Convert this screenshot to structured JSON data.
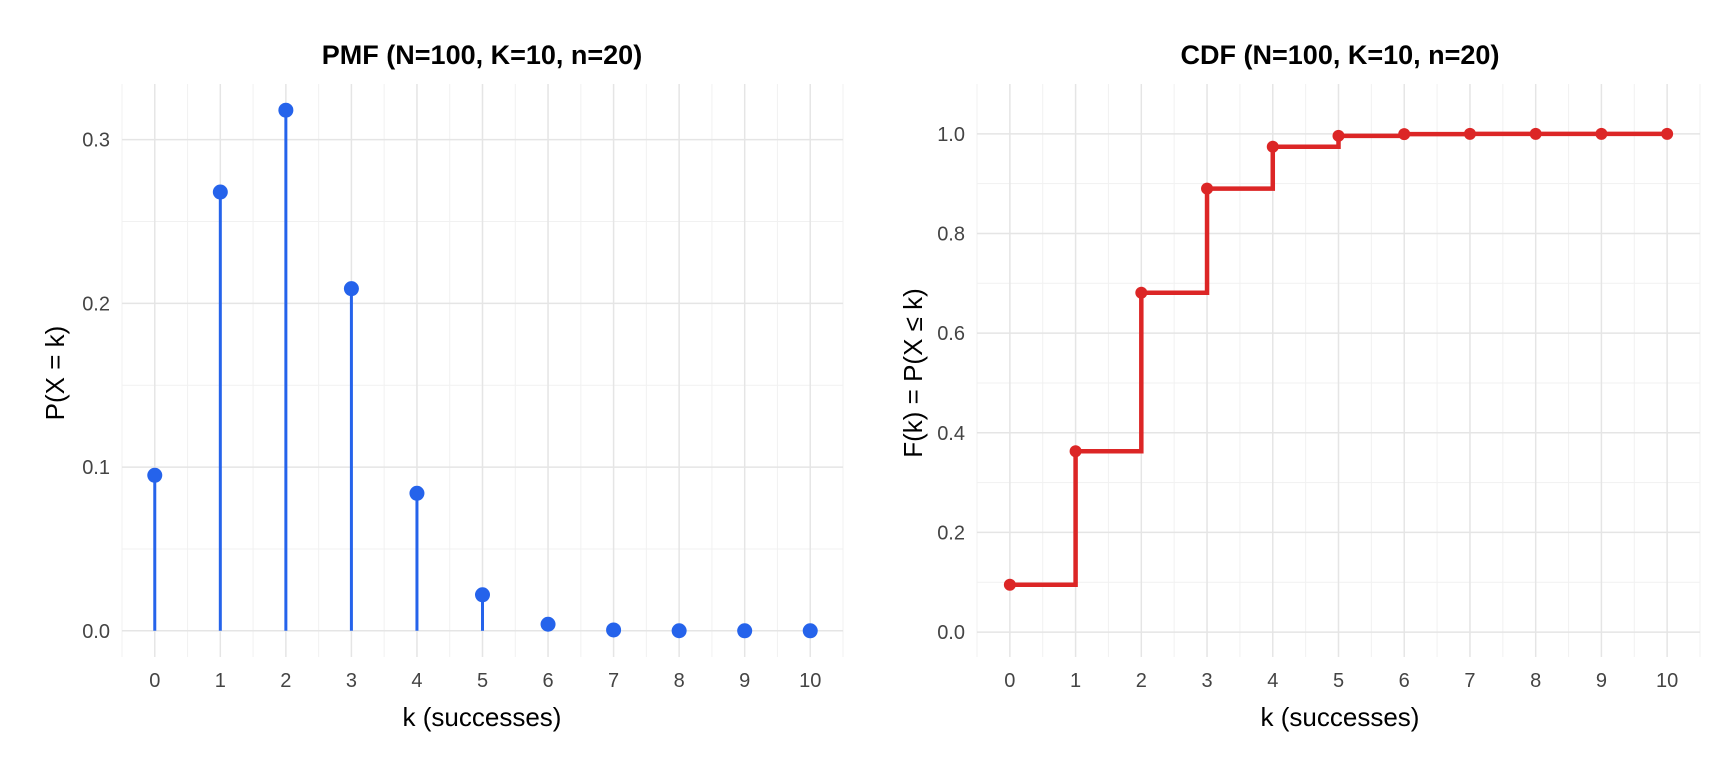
{
  "chart_data": [
    {
      "type": "lollipop",
      "title": "PMF  (N=100, K=10, n=20)",
      "xlabel": "k (successes)",
      "ylabel": "P(X = k)",
      "x": [
        0,
        1,
        2,
        3,
        4,
        5,
        6,
        7,
        8,
        9,
        10
      ],
      "values": [
        0.095,
        0.268,
        0.318,
        0.209,
        0.084,
        0.022,
        0.004,
        0.0005,
        3e-05,
        1e-06,
        0.0
      ],
      "xlim": [
        -0.5,
        10.5
      ],
      "ylim": [
        -0.016,
        0.334
      ],
      "xticks": [
        0,
        1,
        2,
        3,
        4,
        5,
        6,
        7,
        8,
        9,
        10
      ],
      "yticks": [
        0.0,
        0.1,
        0.2,
        0.3
      ],
      "ytick_labels": [
        "0.0",
        "0.1",
        "0.2",
        "0.3"
      ],
      "color": "#2563eb",
      "grid": true
    },
    {
      "type": "step",
      "title": "CDF  (N=100, K=10, n=20)",
      "xlabel": "k (successes)",
      "ylabel": "F(k) = P(X ≤ k)",
      "x": [
        0,
        1,
        2,
        3,
        4,
        5,
        6,
        7,
        8,
        9,
        10
      ],
      "values": [
        0.095,
        0.363,
        0.681,
        0.89,
        0.974,
        0.996,
        0.9995,
        1.0,
        1.0,
        1.0,
        1.0
      ],
      "xlim": [
        -0.5,
        10.5
      ],
      "ylim": [
        -0.05,
        1.1
      ],
      "xticks": [
        0,
        1,
        2,
        3,
        4,
        5,
        6,
        7,
        8,
        9,
        10
      ],
      "yticks": [
        0.0,
        0.2,
        0.4,
        0.6,
        0.8,
        1.0
      ],
      "ytick_labels": [
        "0.0",
        "0.2",
        "0.4",
        "0.6",
        "0.8",
        "1.0"
      ],
      "color": "#dc2626",
      "grid": true
    }
  ]
}
